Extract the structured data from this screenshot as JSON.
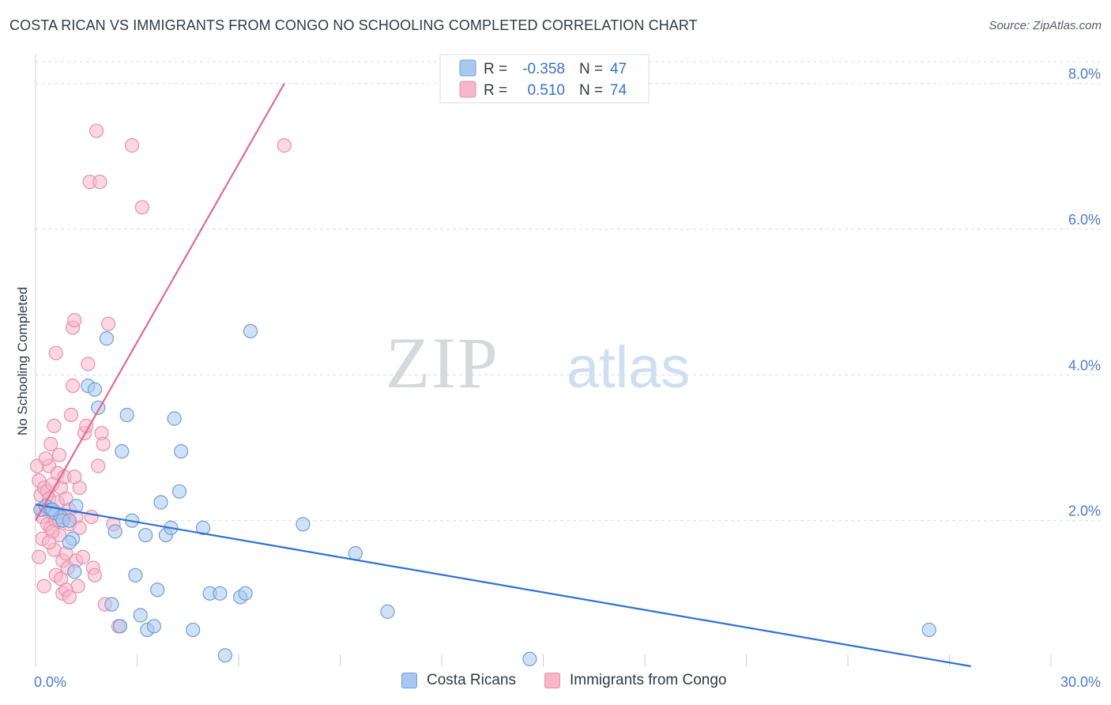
{
  "title": "COSTA RICAN VS IMMIGRANTS FROM CONGO NO SCHOOLING COMPLETED CORRELATION CHART",
  "source": "Source: ZipAtlas.com",
  "watermark": {
    "zip": "ZIP",
    "atlas": "atlas"
  },
  "colors": {
    "blue_fill": "#a9c8ef",
    "blue_stroke": "#6f9fd8",
    "blue_line": "#2f72d1",
    "pink_fill": "#f6b7cb",
    "pink_stroke": "#ea8fab",
    "pink_line": "#e06a95",
    "axis_label": "#4a7cc9",
    "grid": "#d9dde3"
  },
  "legend_top": {
    "rows": [
      {
        "r_label": "R =",
        "r_value": "-0.358",
        "n_label": "N =",
        "n_value": "47"
      },
      {
        "r_label": "R =",
        "r_value": "0.510",
        "n_label": "N =",
        "n_value": "74"
      }
    ]
  },
  "legend_bottom": [
    "Costa Ricans",
    "Immigrants from Congo"
  ],
  "chart_data": {
    "type": "scatter",
    "title": "COSTA RICAN VS IMMIGRANTS FROM CONGO NO SCHOOLING COMPLETED CORRELATION CHART",
    "xlabel": "",
    "ylabel": "No Schooling Completed",
    "xlim": [
      0,
      30
    ],
    "ylim": [
      0,
      8.3
    ],
    "x_tick_labels": [
      "0.0%",
      "30.0%"
    ],
    "y_ticks": [
      2,
      4,
      6,
      8
    ],
    "y_tick_labels": [
      "2.0%",
      "4.0%",
      "6.0%",
      "8.0%"
    ],
    "series": [
      {
        "name": "Costa Ricans",
        "r": -0.358,
        "n": 47,
        "trend": {
          "x": [
            0,
            30
          ],
          "y": [
            2.22,
            -0.19
          ]
        },
        "points": [
          [
            0.15,
            2.15
          ],
          [
            0.3,
            2.2
          ],
          [
            0.45,
            2.15
          ],
          [
            0.6,
            2.1
          ],
          [
            0.75,
            2.05
          ],
          [
            0.8,
            2.0
          ],
          [
            1.0,
            2.0
          ],
          [
            1.1,
            1.75
          ],
          [
            1.15,
            1.3
          ],
          [
            1.2,
            2.2
          ],
          [
            1.55,
            3.85
          ],
          [
            1.75,
            3.8
          ],
          [
            1.85,
            3.55
          ],
          [
            2.1,
            4.5
          ],
          [
            2.25,
            0.85
          ],
          [
            2.35,
            1.85
          ],
          [
            2.55,
            2.95
          ],
          [
            2.5,
            0.55
          ],
          [
            2.7,
            3.45
          ],
          [
            2.85,
            2.0
          ],
          [
            2.95,
            1.25
          ],
          [
            3.1,
            0.7
          ],
          [
            3.25,
            1.8
          ],
          [
            3.3,
            0.5
          ],
          [
            3.5,
            0.55
          ],
          [
            3.6,
            1.05
          ],
          [
            3.7,
            2.25
          ],
          [
            3.85,
            1.8
          ],
          [
            4.0,
            1.9
          ],
          [
            4.1,
            3.4
          ],
          [
            4.25,
            2.4
          ],
          [
            4.3,
            2.95
          ],
          [
            4.65,
            0.5
          ],
          [
            4.95,
            1.9
          ],
          [
            5.15,
            1.0
          ],
          [
            5.45,
            1.0
          ],
          [
            5.6,
            0.15
          ],
          [
            6.05,
            0.95
          ],
          [
            6.2,
            1.0
          ],
          [
            6.35,
            4.6
          ],
          [
            7.9,
            1.95
          ],
          [
            9.45,
            1.55
          ],
          [
            10.4,
            0.75
          ],
          [
            14.6,
            0.1
          ],
          [
            26.4,
            0.5
          ],
          [
            1.0,
            1.7
          ],
          [
            0.5,
            2.15
          ]
        ]
      },
      {
        "name": "Immigrants from Congo",
        "r": 0.51,
        "n": 74,
        "trend": {
          "x": [
            0,
            7.35
          ],
          "y": [
            2.0,
            8.0
          ]
        },
        "points": [
          [
            0.05,
            2.75
          ],
          [
            0.1,
            2.55
          ],
          [
            0.1,
            1.5
          ],
          [
            0.15,
            2.35
          ],
          [
            0.2,
            1.75
          ],
          [
            0.2,
            2.05
          ],
          [
            0.25,
            2.45
          ],
          [
            0.25,
            1.1
          ],
          [
            0.3,
            2.2
          ],
          [
            0.35,
            1.95
          ],
          [
            0.35,
            2.4
          ],
          [
            0.4,
            2.75
          ],
          [
            0.4,
            2.3
          ],
          [
            0.45,
            3.05
          ],
          [
            0.45,
            1.9
          ],
          [
            0.5,
            2.5
          ],
          [
            0.5,
            2.1
          ],
          [
            0.55,
            3.3
          ],
          [
            0.55,
            1.6
          ],
          [
            0.6,
            4.3
          ],
          [
            0.6,
            2.0
          ],
          [
            0.6,
            1.25
          ],
          [
            0.65,
            2.65
          ],
          [
            0.65,
            2.25
          ],
          [
            0.7,
            2.9
          ],
          [
            0.7,
            1.8
          ],
          [
            0.75,
            1.2
          ],
          [
            0.75,
            2.45
          ],
          [
            0.8,
            1.0
          ],
          [
            0.8,
            1.45
          ],
          [
            0.85,
            2.05
          ],
          [
            0.85,
            2.6
          ],
          [
            0.9,
            1.55
          ],
          [
            0.9,
            2.3
          ],
          [
            0.95,
            1.35
          ],
          [
            1.0,
            1.95
          ],
          [
            1.0,
            2.15
          ],
          [
            1.05,
            3.45
          ],
          [
            1.1,
            3.85
          ],
          [
            1.1,
            4.65
          ],
          [
            1.15,
            4.75
          ],
          [
            1.2,
            2.05
          ],
          [
            1.2,
            1.45
          ],
          [
            1.25,
            1.1
          ],
          [
            1.3,
            2.45
          ],
          [
            1.3,
            1.9
          ],
          [
            1.4,
            1.5
          ],
          [
            1.45,
            3.2
          ],
          [
            1.5,
            3.3
          ],
          [
            1.55,
            4.15
          ],
          [
            1.6,
            6.65
          ],
          [
            1.65,
            2.05
          ],
          [
            1.7,
            1.35
          ],
          [
            1.75,
            1.25
          ],
          [
            1.8,
            7.35
          ],
          [
            1.85,
            2.75
          ],
          [
            1.9,
            6.65
          ],
          [
            1.95,
            3.2
          ],
          [
            2.0,
            3.05
          ],
          [
            2.05,
            0.85
          ],
          [
            2.15,
            4.7
          ],
          [
            2.3,
            1.95
          ],
          [
            2.45,
            0.55
          ],
          [
            2.85,
            7.15
          ],
          [
            3.15,
            6.3
          ],
          [
            0.3,
            2.85
          ],
          [
            0.5,
            1.85
          ],
          [
            0.7,
            2.0
          ],
          [
            0.9,
            1.05
          ],
          [
            1.0,
            0.95
          ],
          [
            1.15,
            2.6
          ],
          [
            0.2,
            2.15
          ],
          [
            0.4,
            1.7
          ],
          [
            7.35,
            7.15
          ]
        ]
      }
    ]
  }
}
